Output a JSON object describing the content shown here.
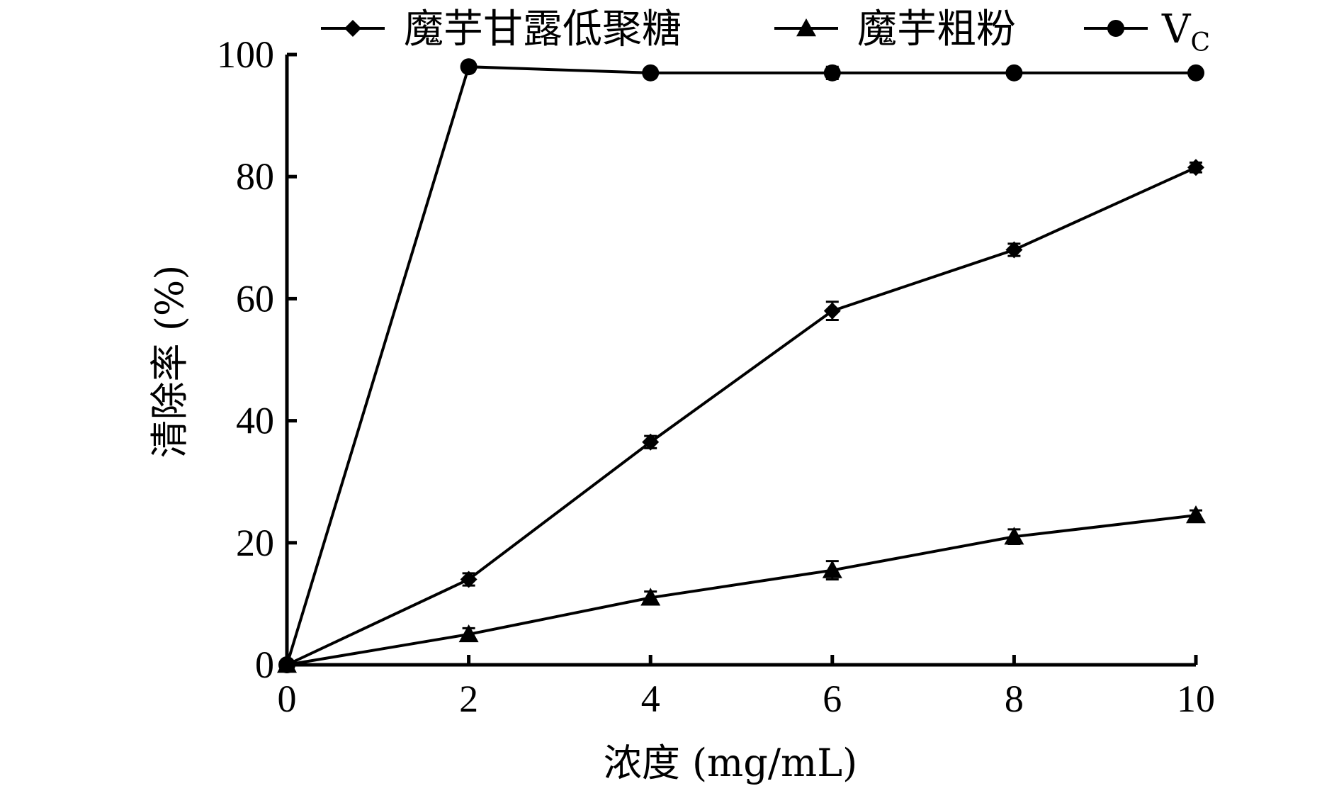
{
  "chart_data": {
    "type": "line",
    "title": "",
    "xlabel": "浓度 (mg/mL)",
    "ylabel": "清除率 (%)",
    "x": [
      0,
      2,
      4,
      6,
      8,
      10
    ],
    "xlim": [
      0,
      10
    ],
    "ylim": [
      0,
      100
    ],
    "xticks": [
      "0",
      "2",
      "4",
      "6",
      "8",
      "10"
    ],
    "yticks": [
      "0",
      "20",
      "40",
      "60",
      "80",
      "100"
    ],
    "grid": false,
    "legend_position": "top",
    "series": [
      {
        "name": "魔芋甘露低聚糖",
        "marker": "diamond",
        "values": [
          0,
          14,
          36.5,
          58,
          68,
          81.5
        ],
        "errors": [
          0.5,
          1,
          1,
          1.5,
          1,
          0.8
        ]
      },
      {
        "name": "魔芋粗粉",
        "marker": "triangle",
        "values": [
          0,
          5,
          11,
          15.5,
          21,
          24.5
        ],
        "errors": [
          0.5,
          1,
          1,
          1.5,
          1.2,
          0.8
        ]
      },
      {
        "name": "V",
        "name_subscript": "C",
        "marker": "circle",
        "values": [
          0,
          98,
          97,
          97,
          97,
          97
        ],
        "errors": [
          0.5,
          0.8,
          0.5,
          1,
          0.5,
          0.5
        ]
      }
    ]
  }
}
